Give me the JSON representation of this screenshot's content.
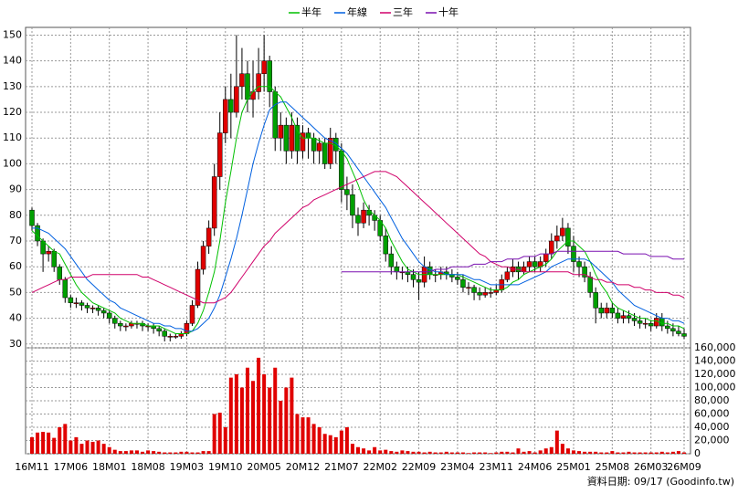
{
  "chart_data": {
    "type": "candlestick",
    "categories": [
      "16M11",
      null,
      null,
      null,
      null,
      null,
      null,
      "17M06",
      null,
      null,
      null,
      null,
      null,
      null,
      "18M01",
      null,
      null,
      null,
      null,
      null,
      null,
      "18M08",
      null,
      null,
      null,
      null,
      null,
      null,
      "19M03",
      null,
      null,
      null,
      null,
      null,
      null,
      "19M10",
      null,
      null,
      null,
      null,
      null,
      null,
      "20M05",
      null,
      null,
      null,
      null,
      null,
      null,
      "20M12",
      null,
      null,
      null,
      null,
      null,
      null,
      "21M07",
      null,
      null,
      null,
      null,
      null,
      null,
      "22M02",
      null,
      null,
      null,
      null,
      null,
      null,
      "22M09",
      null,
      null,
      null,
      null,
      null,
      null,
      "23M04",
      null,
      null,
      null,
      null,
      null,
      null,
      "23M11",
      null,
      null,
      null,
      null,
      null,
      null,
      "24M06",
      null,
      null,
      null,
      null,
      null,
      null,
      "25M01",
      null,
      null,
      null,
      null,
      null,
      null,
      "25M08",
      null,
      null,
      null,
      null,
      null,
      null,
      "26M03",
      null,
      null,
      null,
      null,
      null,
      "26M09"
    ],
    "open": [
      82,
      76,
      70,
      65,
      66,
      60,
      55,
      48,
      46,
      46,
      45,
      44,
      44,
      43,
      42,
      40,
      38,
      37,
      37,
      38,
      38,
      37,
      37,
      36,
      35,
      33,
      33,
      33,
      34,
      38,
      45,
      59,
      68,
      75,
      95,
      112,
      125,
      120,
      130,
      135,
      125,
      128,
      135,
      140,
      128,
      110,
      115,
      105,
      115,
      105,
      112,
      110,
      105,
      108,
      100,
      110,
      105,
      90,
      88,
      80,
      77,
      82,
      80,
      78,
      72,
      65,
      60,
      58,
      58,
      57,
      55,
      54,
      60,
      57,
      57,
      58,
      57,
      56,
      55,
      52,
      52,
      50,
      49,
      50,
      50,
      51,
      55,
      58,
      60,
      58,
      60,
      62,
      60,
      62,
      65,
      70,
      72,
      75,
      68,
      62,
      60,
      56,
      50,
      44,
      42,
      44,
      42,
      40,
      41,
      40,
      39,
      38,
      38,
      37,
      40,
      37,
      36,
      35,
      34
    ],
    "high": [
      83,
      77,
      71,
      68,
      67,
      61,
      56,
      49,
      48,
      47,
      46,
      45,
      45,
      44,
      43,
      41,
      39,
      38,
      39,
      39,
      39,
      38,
      38,
      37,
      36,
      34,
      34,
      35,
      39,
      47,
      62,
      70,
      78,
      100,
      120,
      130,
      135,
      150,
      145,
      140,
      140,
      145,
      150,
      142,
      130,
      120,
      118,
      120,
      118,
      115,
      114,
      112,
      110,
      110,
      114,
      112,
      108,
      95,
      92,
      83,
      85,
      84,
      82,
      80,
      75,
      68,
      62,
      60,
      60,
      59,
      58,
      64,
      62,
      59,
      60,
      60,
      59,
      58,
      57,
      54,
      53,
      52,
      52,
      52,
      53,
      57,
      60,
      63,
      62,
      62,
      64,
      64,
      64,
      67,
      73,
      76,
      79,
      77,
      72,
      64,
      62,
      58,
      52,
      46,
      46,
      46,
      44,
      43,
      43,
      42,
      41,
      40,
      39,
      42,
      42,
      39,
      38,
      37,
      36
    ],
    "low": [
      74,
      68,
      58,
      62,
      58,
      53,
      46,
      44,
      44,
      43,
      42,
      42,
      41,
      40,
      38,
      36,
      35,
      35,
      36,
      36,
      35,
      35,
      34,
      33,
      31,
      31,
      32,
      32,
      33,
      37,
      44,
      57,
      65,
      72,
      90,
      108,
      110,
      118,
      125,
      120,
      118,
      125,
      128,
      122,
      105,
      105,
      100,
      102,
      100,
      102,
      102,
      100,
      100,
      98,
      98,
      100,
      85,
      82,
      75,
      72,
      75,
      76,
      74,
      70,
      62,
      57,
      55,
      55,
      54,
      52,
      47,
      52,
      55,
      54,
      55,
      55,
      54,
      53,
      50,
      49,
      47,
      47,
      48,
      48,
      49,
      50,
      54,
      56,
      55,
      57,
      58,
      58,
      58,
      60,
      63,
      67,
      70,
      65,
      58,
      56,
      54,
      48,
      38,
      40,
      40,
      40,
      38,
      38,
      38,
      37,
      36,
      36,
      35,
      36,
      35,
      34,
      33,
      33,
      32
    ],
    "close": [
      76,
      70,
      65,
      66,
      60,
      55,
      48,
      46,
      46,
      45,
      44,
      44,
      43,
      42,
      40,
      38,
      37,
      37,
      38,
      38,
      37,
      37,
      36,
      35,
      33,
      33,
      33,
      34,
      38,
      45,
      59,
      68,
      75,
      95,
      112,
      125,
      120,
      130,
      135,
      125,
      128,
      135,
      140,
      128,
      110,
      115,
      105,
      115,
      105,
      112,
      110,
      105,
      108,
      100,
      110,
      105,
      90,
      88,
      80,
      77,
      82,
      80,
      78,
      72,
      65,
      60,
      58,
      58,
      57,
      55,
      54,
      60,
      57,
      57,
      58,
      57,
      56,
      55,
      52,
      52,
      50,
      49,
      50,
      50,
      51,
      55,
      58,
      60,
      58,
      60,
      62,
      60,
      62,
      65,
      70,
      72,
      75,
      68,
      62,
      60,
      56,
      50,
      44,
      42,
      44,
      42,
      40,
      41,
      40,
      39,
      38,
      38,
      37,
      40,
      37,
      36,
      35,
      34,
      33
    ],
    "volume": [
      25000,
      32000,
      33000,
      32000,
      24000,
      40000,
      45000,
      20000,
      25000,
      15000,
      20000,
      18000,
      20000,
      15000,
      10000,
      6000,
      4000,
      4000,
      5000,
      5000,
      3000,
      5000,
      4000,
      3000,
      2000,
      2000,
      2000,
      3000,
      3000,
      2000,
      2000,
      4000,
      4000,
      60000,
      62000,
      40000,
      115000,
      120000,
      100000,
      130000,
      110000,
      145000,
      120000,
      100000,
      130000,
      80000,
      100000,
      115000,
      60000,
      55000,
      55000,
      45000,
      40000,
      30000,
      28000,
      25000,
      35000,
      40000,
      15000,
      10000,
      8000,
      5000,
      10000,
      5000,
      6000,
      4000,
      3000,
      5000,
      4000,
      3000,
      3000,
      2000,
      3000,
      2000,
      2000,
      3000,
      2000,
      2000,
      2000,
      1000,
      2000,
      2000,
      2000,
      1000,
      2000,
      3000,
      3000,
      2000,
      8000,
      3000,
      4000,
      2000,
      5000,
      8000,
      10000,
      35000,
      15000,
      8000,
      5000,
      4000,
      3000,
      3000,
      3000,
      2000,
      2000,
      4000,
      2000,
      2000,
      3000,
      2000,
      2000,
      2000,
      2000,
      2000,
      3000,
      2000,
      3000,
      4000,
      2000
    ],
    "up_color": "#e00000",
    "down_color": "#00a000",
    "volume_color": "#e00000",
    "series": [
      {
        "name": "半年",
        "color": "#00c000",
        "values": [
          74,
          72,
          70,
          68,
          66,
          65,
          61,
          57,
          53,
          50,
          48,
          46,
          45,
          44,
          43,
          42,
          40,
          39,
          38,
          38,
          38,
          37,
          37,
          37,
          36,
          35,
          34,
          34,
          34,
          35,
          38,
          43,
          50,
          58,
          70,
          85,
          97,
          110,
          120,
          125,
          128,
          130,
          130,
          130,
          128,
          126,
          122,
          118,
          113,
          110,
          110,
          110,
          109,
          108,
          108,
          107,
          105,
          102,
          97,
          92,
          86,
          82,
          80,
          78,
          75,
          70,
          66,
          62,
          59,
          58,
          57,
          57,
          57,
          57,
          57,
          57,
          57,
          57,
          56,
          55,
          54,
          53,
          52,
          51,
          51,
          51,
          52,
          54,
          55,
          57,
          58,
          59,
          60,
          61,
          63,
          66,
          68,
          70,
          70,
          68,
          66,
          62,
          57,
          53,
          50,
          46,
          44,
          43,
          42,
          41,
          40,
          40,
          39,
          39,
          38,
          38,
          37,
          37,
          36
        ]
      },
      {
        "name": "年線",
        "color": "#0060e0",
        "values": [
          75,
          75,
          74,
          73,
          71,
          69,
          67,
          64,
          61,
          58,
          55,
          53,
          51,
          49,
          47,
          46,
          44,
          43,
          42,
          41,
          40,
          39,
          38,
          38,
          37,
          37,
          36,
          36,
          35,
          35,
          36,
          38,
          40,
          44,
          49,
          56,
          63,
          71,
          80,
          90,
          100,
          108,
          115,
          121,
          123,
          124,
          124,
          122,
          120,
          118,
          116,
          114,
          112,
          110,
          109,
          108,
          106,
          104,
          101,
          98,
          95,
          92,
          89,
          86,
          83,
          79,
          75,
          71,
          68,
          65,
          62,
          60,
          59,
          58,
          58,
          57,
          57,
          57,
          57,
          56,
          55,
          55,
          54,
          53,
          53,
          53,
          53,
          53,
          53,
          54,
          55,
          56,
          57,
          58,
          60,
          61,
          62,
          63,
          63,
          63,
          63,
          62,
          60,
          58,
          56,
          54,
          51,
          49,
          47,
          45,
          44,
          43,
          42,
          41,
          40,
          40,
          39,
          39,
          38
        ]
      },
      {
        "name": "三年",
        "color": "#d0006a",
        "values": [
          50,
          51,
          52,
          53,
          54,
          55,
          55,
          56,
          56,
          56,
          56,
          57,
          57,
          57,
          57,
          57,
          57,
          57,
          57,
          57,
          56,
          56,
          55,
          54,
          53,
          52,
          51,
          50,
          49,
          48,
          47,
          46,
          46,
          46,
          47,
          48,
          50,
          53,
          56,
          59,
          62,
          65,
          68,
          70,
          73,
          75,
          77,
          79,
          81,
          83,
          84,
          86,
          87,
          88,
          89,
          90,
          91,
          92,
          93,
          94,
          95,
          96,
          97,
          97,
          97,
          96,
          95,
          93,
          91,
          89,
          87,
          85,
          83,
          81,
          79,
          77,
          75,
          73,
          71,
          69,
          67,
          65,
          64,
          62,
          61,
          60,
          60,
          59,
          59,
          58,
          58,
          58,
          58,
          58,
          58,
          58,
          58,
          58,
          57,
          57,
          57,
          56,
          55,
          55,
          54,
          54,
          53,
          53,
          53,
          52,
          52,
          51,
          51,
          50,
          50,
          50,
          49,
          49,
          48
        ]
      },
      {
        "name": "十年",
        "color": "#7a10b0",
        "values": [
          null,
          null,
          null,
          null,
          null,
          null,
          null,
          null,
          null,
          null,
          null,
          null,
          null,
          null,
          null,
          null,
          null,
          null,
          null,
          null,
          null,
          null,
          null,
          null,
          null,
          null,
          null,
          null,
          null,
          null,
          null,
          null,
          null,
          null,
          null,
          null,
          null,
          null,
          null,
          null,
          null,
          null,
          null,
          null,
          null,
          null,
          null,
          null,
          null,
          null,
          null,
          null,
          null,
          null,
          null,
          null,
          58,
          58,
          58,
          58,
          58,
          58,
          58,
          58,
          58,
          58,
          58,
          58,
          58,
          58,
          58,
          58,
          58,
          59,
          59,
          59,
          60,
          60,
          60,
          60,
          61,
          61,
          61,
          62,
          62,
          62,
          63,
          63,
          63,
          64,
          64,
          64,
          65,
          65,
          65,
          66,
          66,
          66,
          66,
          66,
          66,
          66,
          66,
          66,
          66,
          66,
          66,
          65,
          65,
          65,
          65,
          65,
          64,
          64,
          64,
          64,
          63,
          63,
          63
        ]
      }
    ],
    "ylim": [
      28.5,
      153
    ],
    "yticks": [
      30,
      40,
      50,
      60,
      70,
      80,
      90,
      100,
      110,
      120,
      130,
      140,
      150
    ],
    "y2lim": [
      0,
      160000
    ],
    "y2ticks": [
      0,
      {
        "value": 20000,
        "label": "20,000"
      },
      {
        "value": 40000,
        "label": "40,000"
      },
      {
        "value": 60000,
        "label": "60,000"
      },
      {
        "value": 80000,
        "label": "80,000"
      },
      {
        "value": 100000,
        "label": "100,000"
      },
      {
        "value": 120000,
        "label": "120,000"
      },
      {
        "value": 140000,
        "label": "140,000"
      },
      {
        "value": 160000,
        "label": "160,000"
      }
    ],
    "grid": true,
    "note": "資料日期: 09/17 (Goodinfo.tw)"
  }
}
